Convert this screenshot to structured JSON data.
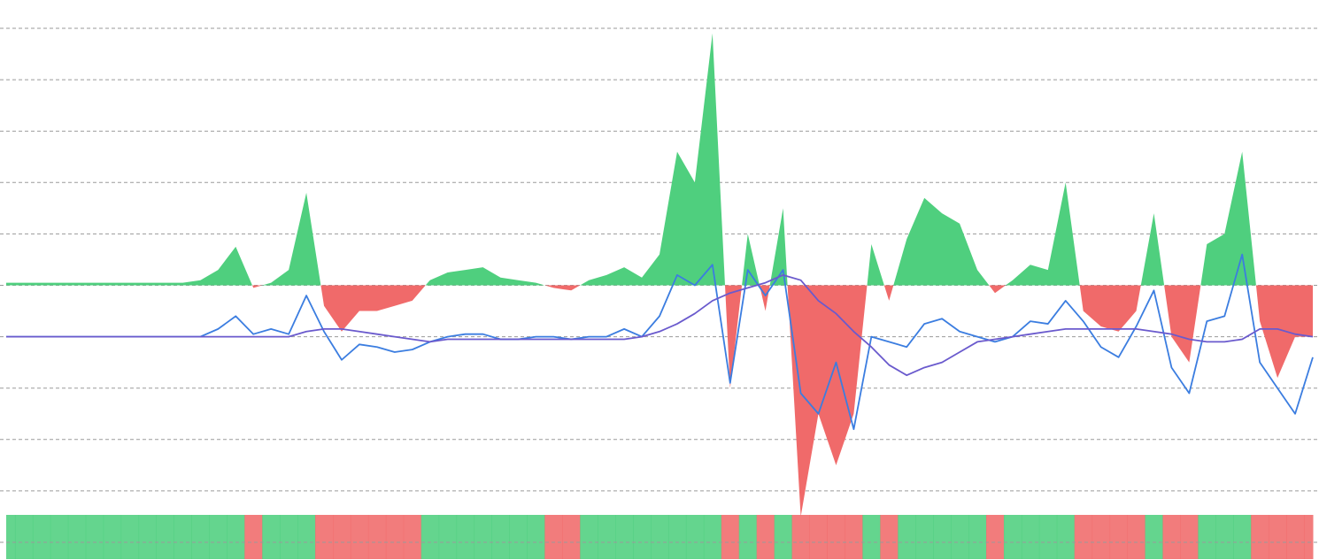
{
  "chart_data": {
    "type": "area",
    "x": [
      0,
      1,
      2,
      3,
      4,
      5,
      6,
      7,
      8,
      9,
      10,
      11,
      12,
      13,
      14,
      15,
      16,
      17,
      18,
      19,
      20,
      21,
      22,
      23,
      24,
      25,
      26,
      27,
      28,
      29,
      30,
      31,
      32,
      33,
      34,
      35,
      36,
      37,
      38,
      39,
      40,
      41,
      42,
      43,
      44,
      45,
      46,
      47,
      48,
      49,
      50,
      51,
      52,
      53,
      54,
      55,
      56,
      57,
      58,
      59,
      60,
      61,
      62,
      63,
      64,
      65,
      66,
      67,
      68,
      69,
      70,
      71,
      72,
      73,
      74
    ],
    "xlim": [
      0,
      74
    ],
    "ylim": [
      -5,
      5
    ],
    "yticks": [
      -5,
      -4,
      -3,
      -2,
      -1,
      0,
      1,
      2,
      3,
      4,
      5
    ],
    "grid": true,
    "series": [
      {
        "color": "#4fcf7e",
        "negative_color": "#f06a6a",
        "values": [
          0.05,
          0.05,
          0.05,
          0.05,
          0.05,
          0.05,
          0.05,
          0.05,
          0.05,
          0.05,
          0.05,
          0.1,
          0.3,
          0.75,
          -0.05,
          0.05,
          0.3,
          1.8,
          -0.4,
          -0.9,
          -0.5,
          -0.5,
          -0.4,
          -0.3,
          0.1,
          0.25,
          0.3,
          0.35,
          0.15,
          0.1,
          0.05,
          -0.05,
          -0.1,
          0.1,
          0.2,
          0.35,
          0.15,
          0.6,
          2.6,
          2.0,
          4.9,
          -2.0,
          1.0,
          -0.5,
          1.5,
          -4.5,
          -2.5,
          -3.5,
          -2.5,
          0.8,
          -0.3,
          0.9,
          1.7,
          1.4,
          1.2,
          0.3,
          -0.15,
          0.1,
          0.4,
          0.3,
          2.0,
          -0.5,
          -0.8,
          -0.9,
          -0.5,
          1.4,
          -1.0,
          -1.5,
          0.8,
          1.0,
          2.6,
          -0.7,
          -1.8,
          -1.0,
          -1.0
        ]
      },
      {
        "color": "#3b7de0",
        "values": [
          -1,
          -1,
          -1,
          -1,
          -1,
          -1,
          -1,
          -1,
          -1,
          -1,
          -1,
          -1,
          -0.85,
          -0.6,
          -0.95,
          -0.85,
          -0.95,
          -0.2,
          -0.9,
          -1.45,
          -1.15,
          -1.2,
          -1.3,
          -1.25,
          -1.1,
          -1.0,
          -0.95,
          -0.95,
          -1.05,
          -1.05,
          -1.0,
          -1.0,
          -1.05,
          -1.0,
          -1.0,
          -0.85,
          -1.0,
          -0.6,
          0.2,
          0.0,
          0.4,
          -1.9,
          0.3,
          -0.2,
          0.3,
          -2.1,
          -2.5,
          -1.5,
          -2.8,
          -1.0,
          -1.1,
          -1.2,
          -0.75,
          -0.65,
          -0.9,
          -1.0,
          -1.1,
          -1.0,
          -0.7,
          -0.75,
          -0.3,
          -0.7,
          -1.2,
          -1.4,
          -0.8,
          -0.1,
          -1.6,
          -2.1,
          -0.7,
          -0.6,
          0.6,
          -1.5,
          -2.0,
          -2.5,
          -1.4
        ]
      },
      {
        "color": "#6a5acd",
        "values": [
          -1,
          -1,
          -1,
          -1,
          -1,
          -1,
          -1,
          -1,
          -1,
          -1,
          -1,
          -1,
          -1,
          -1,
          -1,
          -1,
          -1,
          -0.9,
          -0.85,
          -0.85,
          -0.9,
          -0.95,
          -1.0,
          -1.05,
          -1.1,
          -1.05,
          -1.05,
          -1.05,
          -1.05,
          -1.05,
          -1.05,
          -1.05,
          -1.05,
          -1.05,
          -1.05,
          -1.05,
          -1.0,
          -0.9,
          -0.75,
          -0.55,
          -0.3,
          -0.15,
          -0.05,
          0.05,
          0.2,
          0.1,
          -0.3,
          -0.55,
          -0.9,
          -1.2,
          -1.55,
          -1.75,
          -1.6,
          -1.5,
          -1.3,
          -1.1,
          -1.05,
          -1.0,
          -0.95,
          -0.9,
          -0.85,
          -0.85,
          -0.85,
          -0.85,
          -0.85,
          -0.9,
          -0.95,
          -1.05,
          -1.1,
          -1.1,
          -1.05,
          -0.85,
          -0.85,
          -0.95,
          -1.0
        ]
      }
    ]
  }
}
